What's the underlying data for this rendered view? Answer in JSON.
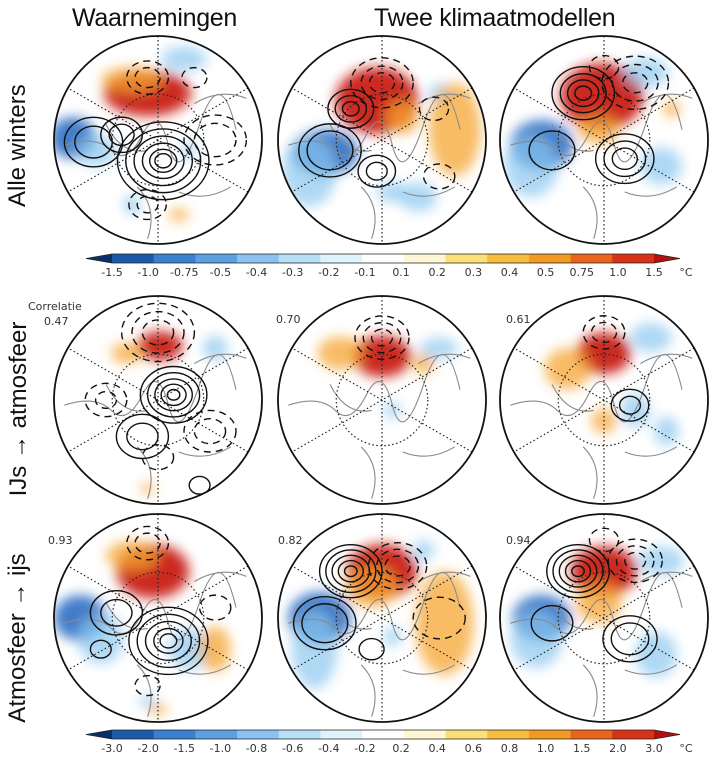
{
  "headers": {
    "observations": "Waarnemingen",
    "models": "Twee klimaatmodellen"
  },
  "rows": [
    {
      "label": "Alle winters",
      "correlations": [
        null,
        null,
        null
      ]
    },
    {
      "label": "IJs → atmosfeer",
      "correlations": [
        "0.47",
        "0.70",
        "0.61"
      ]
    },
    {
      "label": "Atmosfeer → ijs",
      "correlations": [
        "0.93",
        "0.82",
        "0.94"
      ]
    }
  ],
  "correlation_title": "Correlatie",
  "colorbars": [
    {
      "unit": "°C",
      "ticks": [
        "-1.5",
        "-1.0",
        "-0.75",
        "-0.5",
        "-0.4",
        "-0.3",
        "-0.2",
        "-0.1",
        "0.1",
        "0.2",
        "0.3",
        "0.4",
        "0.5",
        "0.75",
        "1.0",
        "1.5"
      ],
      "colors": [
        "#08306b",
        "#1c5aa8",
        "#3a7fd0",
        "#5d9fe0",
        "#8cc2ef",
        "#b7e0f7",
        "#dff3fb",
        "#ffffff",
        "#fff6d5",
        "#fbe07a",
        "#f7bd3f",
        "#f29a22",
        "#e8651b",
        "#d73218",
        "#b51010"
      ]
    },
    {
      "unit": "°C",
      "ticks": [
        "-3.0",
        "-2.0",
        "-1.5",
        "-1.0",
        "-0.8",
        "-0.6",
        "-0.4",
        "-0.2",
        "0.2",
        "0.4",
        "0.6",
        "0.8",
        "1.0",
        "1.5",
        "2.0",
        "3.0"
      ],
      "colors": [
        "#08306b",
        "#1c5aa8",
        "#3a7fd0",
        "#5d9fe0",
        "#8cc2ef",
        "#b7e0f7",
        "#dff3fb",
        "#ffffff",
        "#fff6d5",
        "#fbe07a",
        "#f7bd3f",
        "#f29a22",
        "#e8651b",
        "#d73218",
        "#b51010"
      ]
    }
  ],
  "maps": [
    [
      {
        "blobs": [
          [
            "warm-strong",
            -0.1,
            -0.45,
            0.42,
            0.22
          ],
          [
            "warm",
            -0.25,
            -0.58,
            0.3,
            0.12
          ],
          [
            "cold-strong",
            -0.82,
            -0.02,
            0.22,
            0.2
          ],
          [
            "cold",
            -0.6,
            0.1,
            0.2,
            0.15
          ],
          [
            "cold",
            0.25,
            -0.78,
            0.22,
            0.12
          ],
          [
            "cold",
            0.3,
            0.1,
            0.06,
            0.1
          ],
          [
            "warm",
            0.2,
            0.72,
            0.1,
            0.06
          ],
          [
            "cold",
            -0.25,
            0.62,
            0.08,
            0.1
          ]
        ],
        "solid": [
          [
            0.05,
            0.2,
            [
              0.08,
              0.13,
              0.2,
              0.28,
              0.36,
              0.44
            ]
          ],
          [
            -0.35,
            -0.05,
            [
              0.12,
              0.2
            ]
          ],
          [
            -0.62,
            0.02,
            [
              0.18,
              0.28
            ]
          ]
        ],
        "dashed": [
          [
            0.55,
            0.0,
            [
              0.2,
              0.3
            ]
          ],
          [
            -0.1,
            -0.6,
            [
              0.12,
              0.2
            ]
          ],
          [
            -0.1,
            0.62,
            [
              0.1,
              0.18
            ]
          ],
          [
            0.35,
            -0.6,
            [
              0.12
            ]
          ]
        ]
      },
      {
        "blobs": [
          [
            "warm-strong",
            -0.05,
            -0.38,
            0.4,
            0.32
          ],
          [
            "warm",
            0.2,
            -0.22,
            0.16,
            0.16
          ],
          [
            "cold-strong",
            -0.55,
            0.12,
            0.32,
            0.22
          ],
          [
            "cold",
            -0.7,
            0.3,
            0.26,
            0.34
          ],
          [
            "cold",
            0.55,
            -0.45,
            0.1,
            0.1
          ],
          [
            "warm",
            0.7,
            -0.1,
            0.25,
            0.45
          ],
          [
            "cold",
            0.1,
            0.5,
            0.15,
            0.1
          ],
          [
            "cold",
            0.35,
            0.55,
            0.18,
            0.14
          ]
        ],
        "solid": [
          [
            -0.3,
            -0.3,
            [
              0.08,
              0.15,
              0.22
            ]
          ],
          [
            -0.5,
            0.1,
            [
              0.22,
              0.3
            ]
          ],
          [
            -0.05,
            0.3,
            [
              0.1,
              0.18
            ]
          ]
        ],
        "dashed": [
          [
            0.0,
            -0.55,
            [
              0.12,
              0.2,
              0.3
            ]
          ],
          [
            0.5,
            -0.3,
            [
              0.14
            ]
          ],
          [
            0.55,
            0.35,
            [
              0.15
            ]
          ]
        ]
      },
      {
        "blobs": [
          [
            "warm-strong",
            -0.02,
            -0.42,
            0.4,
            0.32
          ],
          [
            "warm",
            -0.05,
            -0.1,
            0.2,
            0.14
          ],
          [
            "cold-strong",
            -0.6,
            0.05,
            0.3,
            0.24
          ],
          [
            "cold",
            -0.7,
            0.25,
            0.26,
            0.3
          ],
          [
            "cold",
            0.4,
            -0.65,
            0.22,
            0.14
          ],
          [
            "cold",
            0.55,
            0.25,
            0.2,
            0.18
          ],
          [
            "warm",
            0.65,
            -0.3,
            0.08,
            0.08
          ]
        ],
        "solid": [
          [
            -0.2,
            -0.45,
            [
              0.08,
              0.15,
              0.22,
              0.3
            ]
          ],
          [
            0.2,
            0.18,
            [
              0.12,
              0.2,
              0.28
            ]
          ],
          [
            -0.5,
            0.1,
            [
              0.22
            ]
          ]
        ],
        "dashed": [
          [
            0.3,
            -0.55,
            [
              0.12,
              0.22,
              0.32
            ]
          ],
          [
            0.0,
            -0.7,
            [
              0.14
            ]
          ]
        ]
      }
    ],
    [
      {
        "blobs": [
          [
            "warm-strong",
            0.02,
            -0.52,
            0.22,
            0.14
          ],
          [
            "warm",
            -0.3,
            -0.45,
            0.15,
            0.1
          ],
          [
            "cold",
            0.55,
            -0.5,
            0.12,
            0.12
          ],
          [
            "warm",
            -0.1,
            0.85,
            0.06,
            0.06
          ]
        ],
        "solid": [
          [
            0.15,
            -0.05,
            [
              0.06,
              0.12,
              0.18,
              0.25,
              0.32
            ]
          ],
          [
            -0.15,
            0.35,
            [
              0.15,
              0.25
            ]
          ],
          [
            0.4,
            0.82,
            [
              0.1
            ]
          ]
        ],
        "dashed": [
          [
            0.0,
            -0.65,
            [
              0.15,
              0.25,
              0.35
            ]
          ],
          [
            -0.5,
            0.0,
            [
              0.1,
              0.2
            ]
          ],
          [
            0.5,
            0.3,
            [
              0.15,
              0.25
            ]
          ],
          [
            0.0,
            0.55,
            [
              0.15
            ]
          ]
        ]
      },
      {
        "blobs": [
          [
            "warm-strong",
            0.0,
            -0.42,
            0.28,
            0.2
          ],
          [
            "warm",
            -0.4,
            -0.45,
            0.22,
            0.16
          ],
          [
            "warm",
            0.4,
            -0.35,
            0.1,
            0.1
          ],
          [
            "cold",
            0.1,
            0.1,
            0.08,
            0.08
          ],
          [
            "cold",
            0.55,
            -0.5,
            0.18,
            0.1
          ]
        ],
        "solid": [],
        "dashed": [
          [
            0.0,
            -0.6,
            [
              0.1,
              0.18,
              0.26
            ]
          ]
        ]
      },
      {
        "blobs": [
          [
            "warm-strong",
            0.0,
            -0.45,
            0.26,
            0.2
          ],
          [
            "warm",
            -0.35,
            -0.3,
            0.22,
            0.2
          ],
          [
            "cold",
            0.45,
            -0.6,
            0.2,
            0.14
          ],
          [
            "cold",
            0.3,
            0.1,
            0.14,
            0.16
          ],
          [
            "cold",
            0.6,
            0.3,
            0.12,
            0.14
          ],
          [
            "warm",
            0.0,
            0.2,
            0.12,
            0.12
          ]
        ],
        "solid": [
          [
            0.25,
            0.05,
            [
              0.1,
              0.18
            ]
          ]
        ],
        "dashed": [
          [
            0.0,
            -0.65,
            [
              0.12,
              0.2
            ]
          ]
        ]
      }
    ],
    [
      {
        "blobs": [
          [
            "warm-strong",
            -0.05,
            -0.45,
            0.35,
            0.26
          ],
          [
            "warm",
            -0.25,
            -0.6,
            0.25,
            0.14
          ],
          [
            "cold-strong",
            -0.75,
            0.0,
            0.25,
            0.22
          ],
          [
            "cold",
            -0.55,
            0.2,
            0.22,
            0.24
          ],
          [
            "cold",
            0.3,
            0.3,
            0.2,
            0.2
          ],
          [
            "warm",
            0.55,
            0.3,
            0.15,
            0.22
          ],
          [
            "cold",
            -0.1,
            0.8,
            0.08,
            0.06
          ],
          [
            "warm",
            0.0,
            0.88,
            0.08,
            0.06
          ]
        ],
        "solid": [
          [
            0.1,
            0.22,
            [
              0.08,
              0.14,
              0.22,
              0.3,
              0.38
            ]
          ],
          [
            -0.4,
            -0.05,
            [
              0.15,
              0.25
            ]
          ],
          [
            -0.55,
            0.3,
            [
              0.1
            ]
          ]
        ],
        "dashed": [
          [
            -0.1,
            -0.72,
            [
              0.12,
              0.2
            ]
          ],
          [
            -0.1,
            0.65,
            [
              0.12
            ]
          ],
          [
            0.55,
            -0.1,
            [
              0.15
            ]
          ]
        ]
      },
      {
        "blobs": [
          [
            "warm-strong",
            0.0,
            -0.45,
            0.34,
            0.26
          ],
          [
            "warm",
            -0.1,
            -0.3,
            0.25,
            0.2
          ],
          [
            "cold-strong",
            -0.6,
            0.0,
            0.3,
            0.25
          ],
          [
            "cold",
            -0.65,
            0.3,
            0.22,
            0.38
          ],
          [
            "warm",
            0.6,
            0.05,
            0.28,
            0.5
          ],
          [
            "cold",
            0.1,
            0.18,
            0.08,
            0.1
          ],
          [
            "cold",
            0.4,
            -0.65,
            0.1,
            0.1
          ]
        ],
        "solid": [
          [
            -0.3,
            -0.45,
            [
              0.06,
              0.12,
              0.18,
              0.24,
              0.3
            ]
          ],
          [
            -0.55,
            0.05,
            [
              0.22,
              0.3
            ]
          ],
          [
            -0.1,
            0.3,
            [
              0.12
            ]
          ]
        ],
        "dashed": [
          [
            0.15,
            -0.5,
            [
              0.12,
              0.2,
              0.28
            ]
          ],
          [
            0.55,
            0.0,
            [
              0.25
            ]
          ]
        ]
      },
      {
        "blobs": [
          [
            "warm-strong",
            0.0,
            -0.45,
            0.32,
            0.24
          ],
          [
            "warm",
            -0.05,
            -0.15,
            0.22,
            0.2
          ],
          [
            "cold-strong",
            -0.6,
            0.0,
            0.28,
            0.22
          ],
          [
            "cold",
            -0.65,
            0.2,
            0.25,
            0.28
          ],
          [
            "cold",
            0.55,
            -0.55,
            0.22,
            0.14
          ],
          [
            "cold",
            0.5,
            0.35,
            0.2,
            0.22
          ]
        ],
        "solid": [
          [
            -0.25,
            -0.45,
            [
              0.06,
              0.12,
              0.18,
              0.24,
              0.3
            ]
          ],
          [
            0.25,
            0.2,
            [
              0.18,
              0.26
            ]
          ],
          [
            -0.5,
            0.05,
            [
              0.2
            ]
          ]
        ],
        "dashed": [
          [
            0.3,
            -0.55,
            [
              0.1,
              0.18,
              0.26
            ]
          ],
          [
            0.0,
            -0.75,
            [
              0.14
            ]
          ]
        ]
      }
    ]
  ]
}
